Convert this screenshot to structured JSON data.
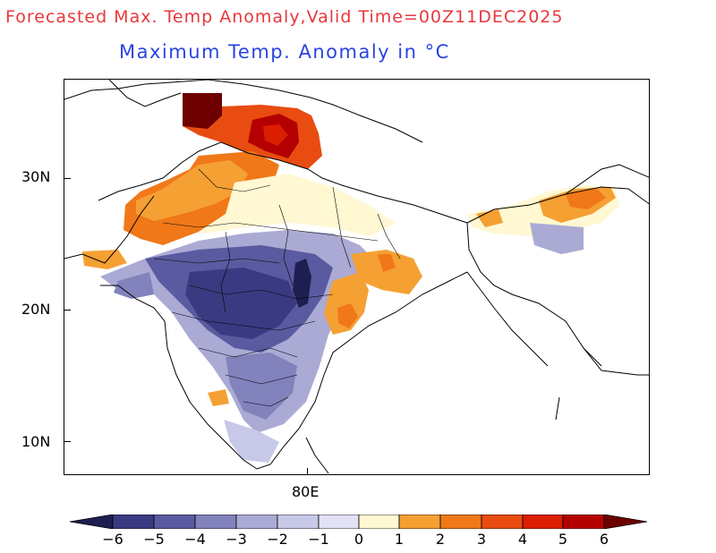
{
  "title": "Forecasted Max. Temp Anomaly,Valid Time=00Z11DEC2025",
  "subtitle": "Maximum Temp. Anomaly in °C",
  "lat_labels": [
    "30N",
    "20N",
    "10N"
  ],
  "lon_labels": [
    "80E"
  ],
  "colorbar": {
    "labels": [
      "−6",
      "−5",
      "−4",
      "−3",
      "−2",
      "−1",
      "0",
      "1",
      "2",
      "3",
      "4",
      "5",
      "6"
    ],
    "colors": [
      "#1e1e50",
      "#3a3a82",
      "#5a5aa0",
      "#8282bc",
      "#aaaad4",
      "#c8c8e8",
      "#e2e2f4",
      "#fff8d2",
      "#f5a033",
      "#f07818",
      "#e84c10",
      "#dc1e00",
      "#b40000",
      "#6e0000"
    ]
  }
}
